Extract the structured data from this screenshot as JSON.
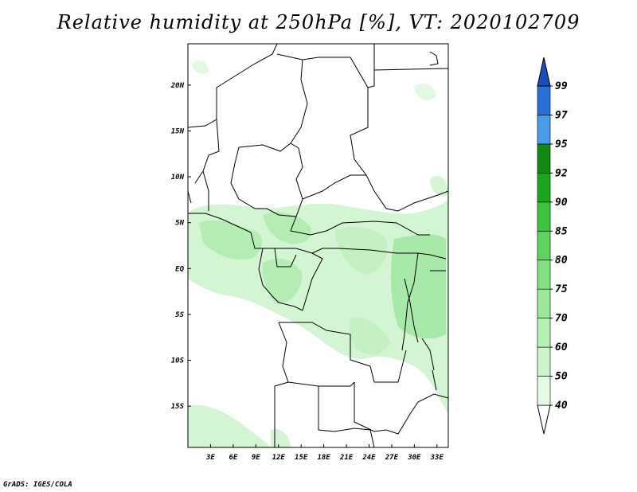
{
  "title": "Relative humidity at 250hPa [%], VT: 2020102709",
  "credit": "GrADS: IGES/COLA",
  "map": {
    "lon_range": [
      0,
      34.5
    ],
    "lat_range": [
      -19.5,
      24.5
    ],
    "lon_ticks": [
      "3E",
      "6E",
      "9E",
      "12E",
      "15E",
      "18E",
      "21E",
      "24E",
      "27E",
      "30E",
      "33E"
    ],
    "lon_tick_values": [
      3,
      6,
      9,
      12,
      15,
      18,
      21,
      24,
      27,
      30,
      33
    ],
    "lat_ticks": [
      "20N",
      "15N",
      "10N",
      "5N",
      "EQ",
      "5S",
      "10S",
      "15S"
    ],
    "lat_tick_values": [
      20,
      15,
      10,
      5,
      0,
      -5,
      -10,
      -15
    ]
  },
  "colorbar": {
    "levels": [
      "40",
      "50",
      "60",
      "70",
      "75",
      "80",
      "85",
      "90",
      "92",
      "95",
      "97",
      "99"
    ],
    "colors": [
      "#ffffff",
      "#e6fbe6",
      "#ccf5cc",
      "#b4f0b4",
      "#9be89b",
      "#82e082",
      "#5fd35f",
      "#3cc23c",
      "#1ea51e",
      "#108a10",
      "#4a9be8",
      "#2a70d6",
      "#1a4eb8"
    ]
  }
}
